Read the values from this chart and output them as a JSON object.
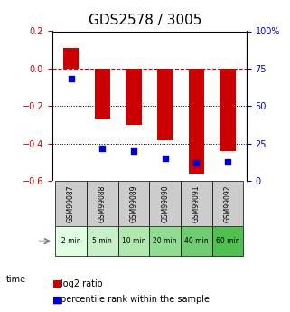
{
  "title": "GDS2578 / 3005",
  "samples": [
    "GSM99087",
    "GSM99088",
    "GSM99089",
    "GSM99090",
    "GSM99091",
    "GSM99092"
  ],
  "time_labels": [
    "2 min",
    "5 min",
    "10 min",
    "20 min",
    "40 min",
    "60 min"
  ],
  "log2_ratio": [
    0.11,
    -0.27,
    -0.3,
    -0.38,
    -0.56,
    -0.44
  ],
  "percentile_rank": [
    68,
    22,
    20,
    15,
    12,
    13
  ],
  "bar_color": "#cc0000",
  "dot_color": "#0000cc",
  "ylim_left": [
    -0.6,
    0.2
  ],
  "ylim_right": [
    0,
    100
  ],
  "yticks_left": [
    -0.6,
    -0.4,
    -0.2,
    0.0,
    0.2
  ],
  "yticks_right": [
    0,
    25,
    50,
    75,
    100
  ],
  "hline_y": 0.0,
  "dotted_lines": [
    -0.2,
    -0.4
  ],
  "title_fontsize": 11,
  "tick_fontsize": 7,
  "label_fontsize": 8,
  "legend_fontsize": 7,
  "sample_bg_color": "#cccccc",
  "time_bg_colors": [
    "#e0ffe0",
    "#c8f0c8",
    "#b0e8b0",
    "#90dc90",
    "#70cc70",
    "#50c050"
  ],
  "time_text_color": "#000000",
  "left_axis_color": "#cc0000",
  "right_axis_color": "#0000cc"
}
